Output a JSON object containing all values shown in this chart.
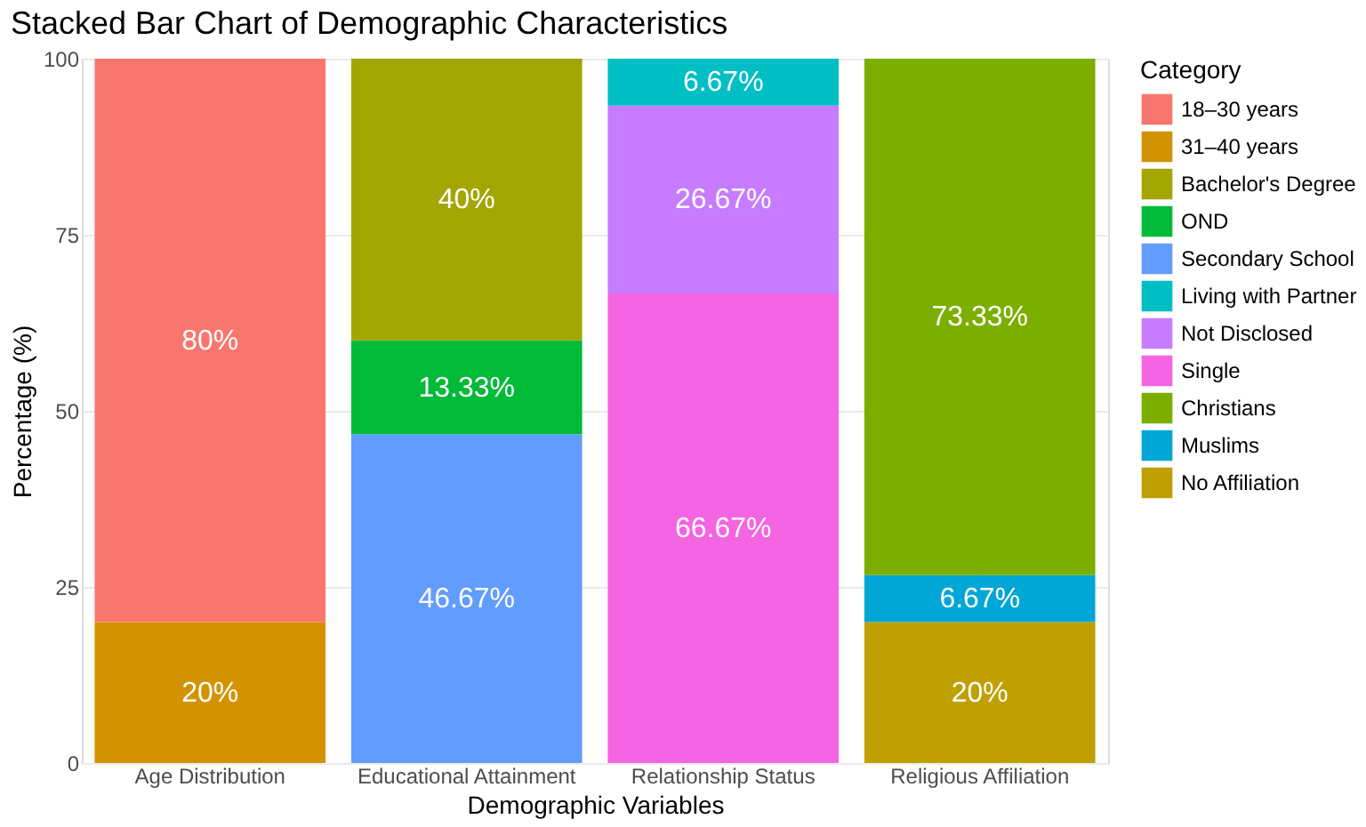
{
  "chart_data": {
    "type": "bar",
    "stacked": true,
    "title": "Stacked Bar Chart of Demographic Characteristics",
    "xlabel": "Demographic Variables",
    "ylabel": "Percentage (%)",
    "legend_title": "Category",
    "legend": "right",
    "grid": true,
    "categories": [
      "Age Distribution",
      "Educational Attainment",
      "Relationship Status",
      "Religious Affiliation"
    ],
    "ylim": [
      0,
      100
    ],
    "yticks": [
      0,
      25,
      50,
      75,
      100
    ],
    "series": [
      {
        "name": "31–40 years",
        "color": "#D39200",
        "values": [
          20,
          null,
          null,
          null
        ],
        "value_labels": [
          "20%",
          null,
          null,
          null
        ]
      },
      {
        "name": "18–30 years",
        "color": "#F8766D",
        "values": [
          80,
          null,
          null,
          null
        ],
        "value_labels": [
          "80%",
          null,
          null,
          null
        ]
      },
      {
        "name": "Secondary School",
        "color": "#619CFF",
        "values": [
          null,
          46.67,
          null,
          null
        ],
        "value_labels": [
          null,
          "46.67%",
          null,
          null
        ]
      },
      {
        "name": "OND",
        "color": "#00BA38",
        "values": [
          null,
          13.33,
          null,
          null
        ],
        "value_labels": [
          null,
          "13.33%",
          null,
          null
        ]
      },
      {
        "name": "Bachelor's Degree",
        "color": "#A3A500",
        "values": [
          null,
          40,
          null,
          null
        ],
        "value_labels": [
          null,
          "40%",
          null,
          null
        ]
      },
      {
        "name": "Single",
        "color": "#F564E3",
        "values": [
          null,
          null,
          66.67,
          null
        ],
        "value_labels": [
          null,
          null,
          "66.67%",
          null
        ]
      },
      {
        "name": "Not Disclosed",
        "color": "#C77CFF",
        "values": [
          null,
          null,
          26.67,
          null
        ],
        "value_labels": [
          null,
          null,
          "26.67%",
          null
        ]
      },
      {
        "name": "Living with Partner",
        "color": "#00BFC4",
        "values": [
          null,
          null,
          6.67,
          null
        ],
        "value_labels": [
          null,
          null,
          "6.67%",
          null
        ]
      },
      {
        "name": "No Affiliation",
        "color": "#BFA000",
        "values": [
          null,
          null,
          null,
          20
        ],
        "value_labels": [
          null,
          null,
          null,
          "20%"
        ]
      },
      {
        "name": "Muslims",
        "color": "#00A6D6",
        "values": [
          null,
          null,
          null,
          6.67
        ],
        "value_labels": [
          null,
          null,
          null,
          "6.67%"
        ]
      },
      {
        "name": "Christians",
        "color": "#7CAE00",
        "values": [
          null,
          null,
          null,
          73.33
        ],
        "value_labels": [
          null,
          null,
          null,
          "73.33%"
        ]
      }
    ]
  }
}
